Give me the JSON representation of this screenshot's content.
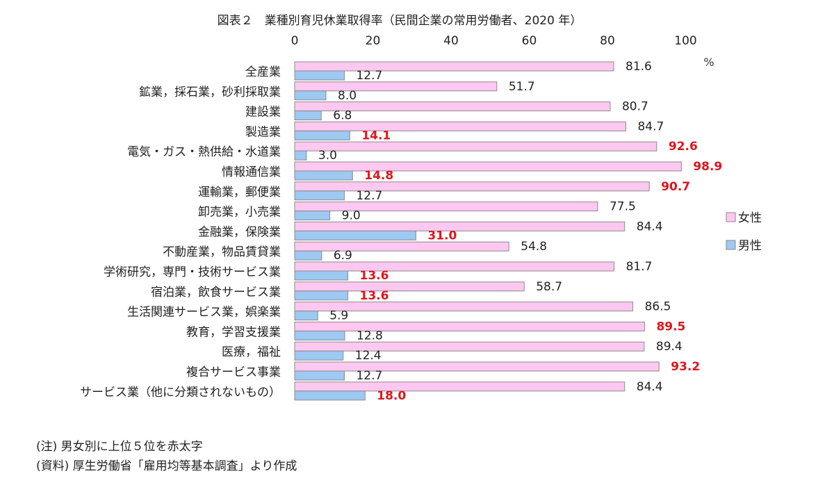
{
  "chart_data": {
    "type": "bar",
    "orientation": "horizontal",
    "title": "図表２　業種別育児休業取得率（民間企業の常用労働者、2020 年）",
    "unit": "%",
    "xlim": [
      0,
      100
    ],
    "ticks": [
      "0",
      "20",
      "40",
      "60",
      "80",
      "100"
    ],
    "grid": false,
    "legend_position": "right",
    "categories": [
      "全産業",
      "鉱業，採石業，砂利採取業",
      "建設業",
      "製造業",
      "電気・ガス・熱供給・水道業",
      "情報通信業",
      "運輸業，郵便業",
      "卸売業，小売業",
      "金融業，保険業",
      "不動産業，物品賃貸業",
      "学術研究，専門・技術サービス業",
      "宿泊業，飲食サービス業",
      "生活関連サービス業，娯楽業",
      "教育，学習支援業",
      "医療，福祉",
      "複合サービス事業",
      "サービス業（他に分類されないもの）"
    ],
    "series": [
      {
        "name": "女性",
        "color": "#ffc8f0",
        "values": [
          81.6,
          51.7,
          80.7,
          84.7,
          92.6,
          98.9,
          90.7,
          77.5,
          84.4,
          54.8,
          81.7,
          58.7,
          86.5,
          89.5,
          89.4,
          93.2,
          84.4
        ],
        "labels": [
          "81.6",
          "51.7",
          "80.7",
          "84.7",
          "92.6",
          "98.9",
          "90.7",
          "77.5",
          "84.4",
          "54.8",
          "81.7",
          "58.7",
          "86.5",
          "89.5",
          "89.4",
          "93.2",
          "84.4"
        ],
        "top5": [
          false,
          false,
          false,
          false,
          true,
          true,
          true,
          false,
          false,
          false,
          false,
          false,
          false,
          true,
          false,
          true,
          false
        ]
      },
      {
        "name": "男性",
        "color": "#9dc9f2",
        "values": [
          12.7,
          8.0,
          6.8,
          14.1,
          3.0,
          14.8,
          12.7,
          9.0,
          31.0,
          6.9,
          13.6,
          13.6,
          5.9,
          12.8,
          12.4,
          12.7,
          18.0
        ],
        "labels": [
          "12.7",
          "8.0",
          "6.8",
          "14.1",
          "3.0",
          "14.8",
          "12.7",
          "9.0",
          "31.0",
          "6.9",
          "13.6",
          "13.6",
          "5.9",
          "12.8",
          "12.4",
          "12.7",
          "18.0"
        ],
        "top5": [
          false,
          false,
          false,
          true,
          false,
          true,
          false,
          false,
          true,
          false,
          true,
          true,
          false,
          false,
          false,
          false,
          true
        ]
      }
    ],
    "highlight_color": "#e0141e"
  },
  "notes": {
    "note1": "(注) 男女別に上位５位を赤太字",
    "note2": "(資料) 厚生労働省「雇用均等基本調査」より作成"
  }
}
